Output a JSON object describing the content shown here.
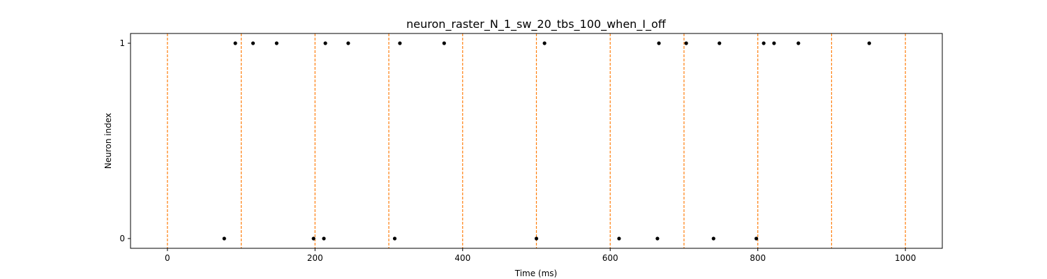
{
  "chart_data": {
    "type": "scatter",
    "title": "neuron_raster_N_1_sw_20_tbs_100_when_I_off",
    "xlabel": "Time (ms)",
    "ylabel": "Neuron index",
    "xlim": [
      -50,
      1050
    ],
    "ylim": [
      -0.05,
      1.05
    ],
    "xticks": [
      0,
      200,
      400,
      600,
      800,
      1000
    ],
    "xtick_labels": [
      "0",
      "200",
      "400",
      "600",
      "800",
      "1000"
    ],
    "yticks": [
      0,
      1
    ],
    "ytick_labels": [
      "0",
      "1"
    ],
    "grid": false,
    "legend": "none",
    "spike_color": "#000000",
    "boundary_color": "#ff7f0e",
    "boundaries": [
      0,
      100,
      200,
      300,
      400,
      500,
      600,
      700,
      800,
      900,
      1000
    ],
    "series": [
      {
        "neuron": 1,
        "times": [
          92,
          116,
          148,
          214,
          245,
          315,
          375,
          511,
          666,
          703,
          748,
          808,
          822,
          855,
          951
        ]
      },
      {
        "neuron": 0,
        "times": [
          77,
          198,
          212,
          308,
          500,
          612,
          664,
          740,
          798
        ]
      }
    ]
  }
}
